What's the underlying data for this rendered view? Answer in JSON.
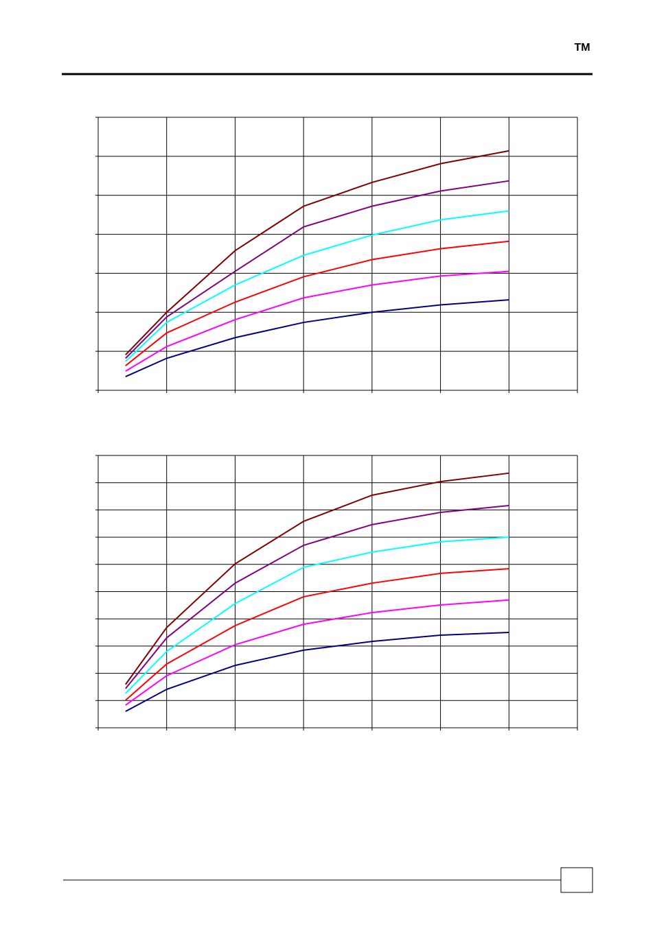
{
  "header": {
    "mark": "TM"
  },
  "chart_data": [
    {
      "type": "line",
      "x": [
        0.4,
        1,
        2,
        3,
        4,
        5,
        6
      ],
      "xlim": [
        0,
        7
      ],
      "xticks": [
        0,
        1,
        2,
        3,
        4,
        5,
        6,
        7
      ],
      "ylim": [
        0,
        7
      ],
      "yticks": [
        0,
        1,
        2,
        3,
        4,
        5,
        6,
        7
      ],
      "grid": true,
      "series": [
        {
          "color": "#800000",
          "values": [
            0.91,
            2.0,
            3.58,
            4.72,
            5.33,
            5.81,
            6.14
          ]
        },
        {
          "color": "#800080",
          "values": [
            0.82,
            1.88,
            3.05,
            4.19,
            4.72,
            5.11,
            5.37
          ]
        },
        {
          "color": "#00ffff",
          "values": [
            0.74,
            1.74,
            2.7,
            3.46,
            3.98,
            4.37,
            4.6
          ]
        },
        {
          "color": "#ff0000",
          "values": [
            0.63,
            1.47,
            2.26,
            2.91,
            3.35,
            3.63,
            3.82
          ]
        },
        {
          "color": "#ff00ff",
          "values": [
            0.49,
            1.12,
            1.81,
            2.37,
            2.7,
            2.93,
            3.05
          ]
        },
        {
          "color": "#000080",
          "values": [
            0.35,
            0.82,
            1.35,
            1.74,
            2.0,
            2.19,
            2.32
          ]
        }
      ]
    },
    {
      "type": "line",
      "x": [
        0.4,
        1,
        2,
        3,
        4,
        5,
        6
      ],
      "xlim": [
        0,
        7
      ],
      "xticks": [
        0,
        1,
        2,
        3,
        4,
        5,
        6,
        7
      ],
      "ylim": [
        0,
        10
      ],
      "yticks": [
        0,
        1,
        2,
        3,
        4,
        5,
        6,
        7,
        8,
        9,
        10
      ],
      "grid": true,
      "series": [
        {
          "color": "#800000",
          "values": [
            1.59,
            3.68,
            6.02,
            7.58,
            8.54,
            9.04,
            9.35
          ]
        },
        {
          "color": "#800080",
          "values": [
            1.44,
            3.3,
            5.31,
            6.7,
            7.46,
            7.91,
            8.16
          ]
        },
        {
          "color": "#00ffff",
          "values": [
            1.26,
            2.8,
            4.56,
            5.89,
            6.45,
            6.83,
            7.0
          ]
        },
        {
          "color": "#ff0000",
          "values": [
            1.01,
            2.34,
            3.75,
            4.81,
            5.31,
            5.67,
            5.84
          ]
        },
        {
          "color": "#ff00ff",
          "values": [
            0.83,
            1.91,
            3.05,
            3.8,
            4.23,
            4.51,
            4.69
          ]
        },
        {
          "color": "#000080",
          "values": [
            0.6,
            1.41,
            2.29,
            2.85,
            3.17,
            3.4,
            3.5
          ]
        }
      ]
    }
  ]
}
